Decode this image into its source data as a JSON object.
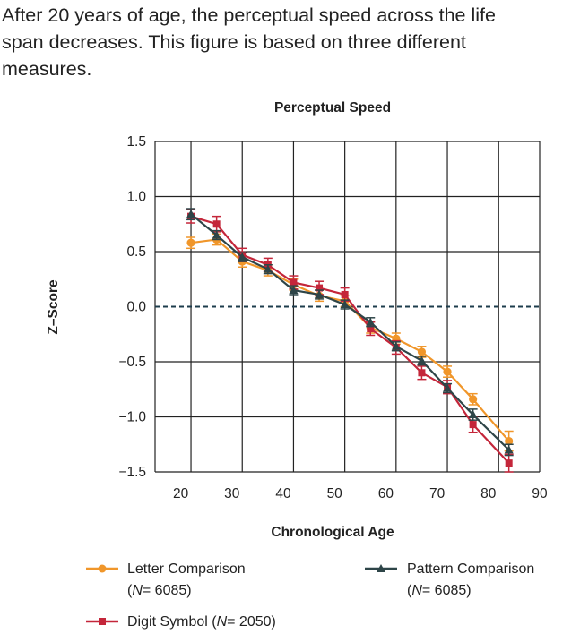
{
  "caption": {
    "line1": "After 20 years of age, the perceptual speed across the life",
    "line2": "span decreases. This figure is based on three different",
    "line3": "measures."
  },
  "colors": {
    "letter": "#f0962a",
    "digit": "#c4263a",
    "pattern": "#2e4548",
    "grid": "#222222",
    "zero_line": "#1d3c4c"
  },
  "legend": {
    "letter": {
      "label_a": "Letter Comparison",
      "n_prefix": "(",
      "n_symbol": "N",
      "n_value": "= 6085)"
    },
    "pattern": {
      "label_a": "Pattern Comparison",
      "n_prefix": "(",
      "n_symbol": "N",
      "n_value": "= 6085)"
    },
    "digit": {
      "label_a": "Digit Symbol (",
      "n_symbol": "N",
      "n_value": "= 2050)"
    }
  },
  "chart_data": {
    "type": "line",
    "title": "Perceptual Speed",
    "xlabel": "Chronological Age",
    "ylabel": "Z–Score",
    "xlim": [
      15,
      90
    ],
    "ylim": [
      -1.5,
      1.5
    ],
    "x_ticks": [
      "20",
      "30",
      "40",
      "50",
      "60",
      "70",
      "80",
      "90"
    ],
    "y_ticks": [
      "1.5",
      "1.0",
      "0.5",
      "0.0",
      "−0.5",
      "−1.0",
      "−1.5"
    ],
    "y_tick_values": [
      1.5,
      1.0,
      0.5,
      0.0,
      -0.5,
      -1.0,
      -1.5
    ],
    "x_tick_values": [
      20,
      30,
      40,
      50,
      60,
      70,
      80,
      90
    ],
    "x_gridlines": [
      15,
      22,
      32,
      42,
      52,
      62,
      72,
      82,
      90
    ],
    "reference_line": 0.0,
    "series": [
      {
        "key": "letter",
        "name": "Letter Comparison (N = 6085)",
        "marker": "circle",
        "x": [
          22,
          27,
          32,
          37,
          42,
          47,
          52,
          57,
          62,
          67,
          72,
          77,
          84
        ],
        "y": [
          0.58,
          0.61,
          0.41,
          0.33,
          0.2,
          0.1,
          0.05,
          -0.19,
          -0.29,
          -0.41,
          -0.59,
          -0.84,
          -1.22
        ],
        "err": [
          0.05,
          0.05,
          0.05,
          0.05,
          0.05,
          0.05,
          0.05,
          0.05,
          0.05,
          0.05,
          0.05,
          0.05,
          0.09
        ]
      },
      {
        "key": "digit",
        "name": "Digit Symbol (N = 2050)",
        "marker": "square",
        "x": [
          22,
          27,
          32,
          37,
          42,
          47,
          52,
          57,
          62,
          67,
          72,
          77,
          84
        ],
        "y": [
          0.82,
          0.75,
          0.47,
          0.38,
          0.22,
          0.17,
          0.11,
          -0.2,
          -0.37,
          -0.6,
          -0.73,
          -1.07,
          -1.42
        ],
        "err": [
          0.06,
          0.07,
          0.06,
          0.06,
          0.06,
          0.06,
          0.06,
          0.06,
          0.06,
          0.06,
          0.06,
          0.07,
          0.08
        ]
      },
      {
        "key": "pattern",
        "name": "Pattern Comparison (N = 6085)",
        "marker": "triangle",
        "x": [
          22,
          27,
          32,
          37,
          42,
          47,
          52,
          57,
          62,
          67,
          72,
          77,
          84
        ],
        "y": [
          0.84,
          0.65,
          0.45,
          0.34,
          0.15,
          0.11,
          0.02,
          -0.14,
          -0.36,
          -0.49,
          -0.74,
          -0.98,
          -1.3
        ],
        "err": [
          0.05,
          0.04,
          0.04,
          0.04,
          0.04,
          0.04,
          0.04,
          0.04,
          0.04,
          0.04,
          0.04,
          0.05,
          0.05
        ]
      }
    ]
  }
}
